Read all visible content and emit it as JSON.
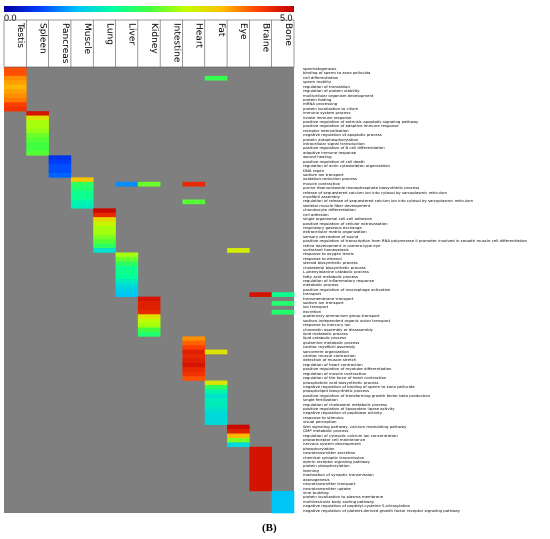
{
  "chart_data": {
    "type": "heatmap",
    "colorbar": {
      "min_label": "0.0",
      "max_label": "5.0",
      "range": [
        0,
        5
      ],
      "colors": [
        "#0000a0",
        "#0040ff",
        "#00c0ff",
        "#00ffa0",
        "#40ff40",
        "#c0ff00",
        "#ffc000",
        "#ff4000",
        "#c00000"
      ]
    },
    "background_color": "#7f7f7f",
    "columns": [
      "Testis",
      "Spleen",
      "Pancreas",
      "Muscle",
      "Lung",
      "Liver",
      "Kidney",
      "Intestine",
      "Heart",
      "Fat",
      "Eye",
      "Braine",
      "Bone"
    ],
    "rows": [
      "spermatogenesis",
      "binding of sperm to zona pellucida",
      "cell differentiation",
      "sperm motility",
      "regulation of translation",
      "regulation of protein stability",
      "multicellular organism development",
      "protein folding",
      "mRNA processing",
      "protein localization to cilium",
      "immune system process",
      "innate immune response",
      "positive regulation of extrinsic apoptotic signaling pathway",
      "positive regulation of adaptive immune response",
      "receptor internalization",
      "negative regulation of apoptotic process",
      "protein autophosphorylation",
      "intracellular signal transduction",
      "positive regulation of B cell differentiation",
      "adaptive immune response",
      "wound healing",
      "positive regulation of cell death",
      "regulation of actin cytoskeleton organization",
      "DNA repair",
      "sodium ion transport",
      "oxidation-reduction process",
      "muscle contraction",
      "purine ribonucleoside monophosphate biosynthetic process",
      "release of sequestered calcium ion into cytosol by sarcoplasmic reticulum",
      "myofibril assembly",
      "regulation of release of sequestered calcium ion into cytosol by sarcoplasmic reticulum",
      "skeletal muscle fiber development",
      "chondrocyte differentiation",
      "cell adhesion",
      "single organismal cell-cell adhesion",
      "positive regulation of cellular extravasation",
      "respiratory gaseous exchange",
      "extracellular matrix organization",
      "sensory perception of sound",
      "positive regulation of transcription from RNA polymerase II promoter involved in smooth muscle cell differentiation",
      "retina development in camera-type eye",
      "surfactant homeostasis",
      "response to oxygen levels",
      "response to ethanol",
      "steroid biosynthetic process",
      "cholesterol biosynthetic process",
      "L-phenylalanine catabolic process",
      "fatty acid metabolic process",
      "regulation of inflammatory response",
      "metabolic process",
      "positive regulation of macrophage activation",
      "transport",
      "transmembrane transport",
      "sodium ion transport",
      "ion transport",
      "excretion",
      "quaternary ammonium group transport",
      "sodium-independent organic anion transport",
      "response to mercury ion",
      "chromatin assembly or disassembly",
      "lipid metabolic process",
      "lipid catabolic process",
      "glutamine metabolic process",
      "cardiac myofibril assembly",
      "sarcomere organization",
      "cardiac muscle contraction",
      "detection of muscle stretch",
      "regulation of heart contraction",
      "positive regulation of myotube differentiation",
      "regulation of muscle contraction",
      "regulation of the force of heart contraction",
      "phosphatidic acid biosynthetic process",
      "negative regulation of binding of sperm to zona pellucida",
      "phospholipid biosynthetic process",
      "positive regulation of transforming growth factor beta production",
      "single fertilization",
      "regulation of cholesterol metabolic process",
      "positive regulation of lipoprotein lipase activity",
      "negative regulation of peptidase activity",
      "response to stimulus",
      "visual perception",
      "Wnt signaling pathway, calcium modulating pathway",
      "GMP metabolic process",
      "regulation of cytosolic calcium ion concentration",
      "photoreceptor cell maintenance",
      "nervous system development",
      "phosphorylation",
      "neurotransmitter secretion",
      "chemical synaptic transmission",
      "ephrin receptor signaling pathway",
      "protein phosphorylation",
      "learning",
      "modulation of synaptic transmission",
      "axonogenesis",
      "neurotransmitter transport",
      "neurotransmitter uptake",
      "viral budding",
      "protein localization to plasma membrane",
      "multivesicular body sorting pathway",
      "negative regulation of peptidyl-cysteine S-nitrosylation",
      "negative regulation of platelet-derived growth factor receptor signaling pathway"
    ],
    "blocks": [
      {
        "column": 0,
        "rows": [
          0,
          9
        ],
        "values": [
          4.3,
          4.3,
          4.0,
          3.9,
          3.8,
          3.9,
          4.0,
          4.1,
          4.4,
          4.5
        ]
      },
      {
        "column": 1,
        "rows": [
          10,
          19
        ],
        "values": [
          4.8,
          3.4,
          3.0,
          3.0,
          2.9,
          2.7,
          2.6,
          2.5,
          2.5,
          2.6
        ]
      },
      {
        "column": 2,
        "rows": [
          20,
          24
        ],
        "values": [
          0.5,
          0.6,
          0.7,
          0.7,
          0.8
        ]
      },
      {
        "column": 3,
        "rows": [
          25,
          31
        ],
        "values": [
          3.7,
          2.3,
          2.2,
          2.0,
          2.0,
          1.8,
          1.7
        ]
      },
      {
        "column": 4,
        "rows": [
          32,
          41
        ],
        "values": [
          4.9,
          4.6,
          3.5,
          3.2,
          3.0,
          3.0,
          2.8,
          2.6,
          2.3,
          1.6
        ]
      },
      {
        "column": 5,
        "rows": [
          42,
          51
        ],
        "values": [
          3.0,
          2.7,
          2.3,
          2.0,
          2.0,
          1.9,
          1.7,
          1.5,
          1.4,
          1.3
        ]
      },
      {
        "column": 6,
        "rows": [
          52,
          60
        ],
        "values": [
          4.8,
          4.7,
          4.7,
          4.6,
          3.4,
          3.1,
          3.0,
          2.5,
          2.2
        ]
      },
      {
        "column": 8,
        "rows": [
          61,
          70
        ],
        "values": [
          4.0,
          4.2,
          4.4,
          4.7,
          4.6,
          4.7,
          4.8,
          4.6,
          4.5,
          4.3
        ]
      },
      {
        "column": 9,
        "rows": [
          71,
          80
        ],
        "values": [
          3.4,
          2.3,
          1.8,
          1.6,
          1.7,
          1.7,
          1.6,
          1.5,
          1.5,
          1.5
        ]
      },
      {
        "column": 10,
        "rows": [
          81,
          85
        ],
        "values": [
          4.9,
          4.7,
          3.8,
          2.8,
          1.5
        ]
      },
      {
        "column": 11,
        "rows": [
          86,
          95
        ],
        "values": [
          4.8,
          4.8,
          4.8,
          4.8,
          4.8,
          4.8,
          4.8,
          4.8,
          4.8,
          4.8
        ]
      },
      {
        "column": 12,
        "rows": [
          96,
          100
        ],
        "values": [
          1.3,
          1.3,
          1.3,
          1.3,
          1.3
        ]
      }
    ],
    "extra_cells": [
      {
        "row": 2,
        "column": 9,
        "value": 2.4
      },
      {
        "row": 26,
        "column": 5,
        "value": 1.0
      },
      {
        "row": 26,
        "column": 6,
        "value": 2.7
      },
      {
        "row": 26,
        "column": 8,
        "value": 4.6
      },
      {
        "row": 30,
        "column": 8,
        "value": 2.6
      },
      {
        "row": 41,
        "column": 10,
        "value": 3.3
      },
      {
        "row": 51,
        "column": 11,
        "value": 4.8
      },
      {
        "row": 51,
        "column": 12,
        "value": 2.0
      },
      {
        "row": 53,
        "column": 12,
        "value": 2.2
      },
      {
        "row": 55,
        "column": 12,
        "value": 2.2
      },
      {
        "row": 64,
        "column": 9,
        "value": 3.4
      }
    ]
  },
  "panel_label": "(B)"
}
